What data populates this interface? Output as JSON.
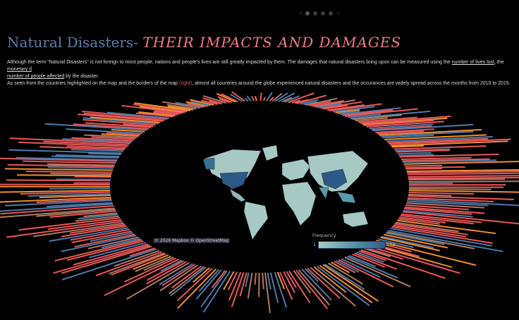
{
  "nav": {
    "prev": "‹",
    "next": "›",
    "pages": 5,
    "current": 1
  },
  "title": {
    "part1": "Natural Disasters-",
    "part2": "THEIR IMPACTS AND DAMAGES"
  },
  "para1": {
    "text1": "Although the term \"Natural Disasters\" is not foreign to most people, nations and people's lives are still greatly impacted by them. The damages that natural disasters bring upon can be measured using the ",
    "link1": "number of lives lost",
    "text2": ", the ",
    "link2": "monetary d",
    "line2_link": "number of people affected",
    "line2_text": " by the disaster."
  },
  "para2": {
    "text1": "As seen from the countries highlighted on the map and the borders of the map ",
    "highlight": "(right)",
    "text2": ", almost all countries around the globe experienced natural disasters and the occurances are widely spread across the months from 2010 to 2015."
  },
  "map": {
    "attribution": "© 2026 Mapbox  © OpenStreetMap",
    "legend": {
      "title": "Frequency",
      "min": "1",
      "max": "193",
      "colors": [
        "#a6c9c4",
        "#2a5a85"
      ]
    }
  },
  "colors": {
    "red": "#e8575a",
    "blue": "#4e79a7",
    "orange": "#f28e2b",
    "brown": "#b07a63"
  }
}
